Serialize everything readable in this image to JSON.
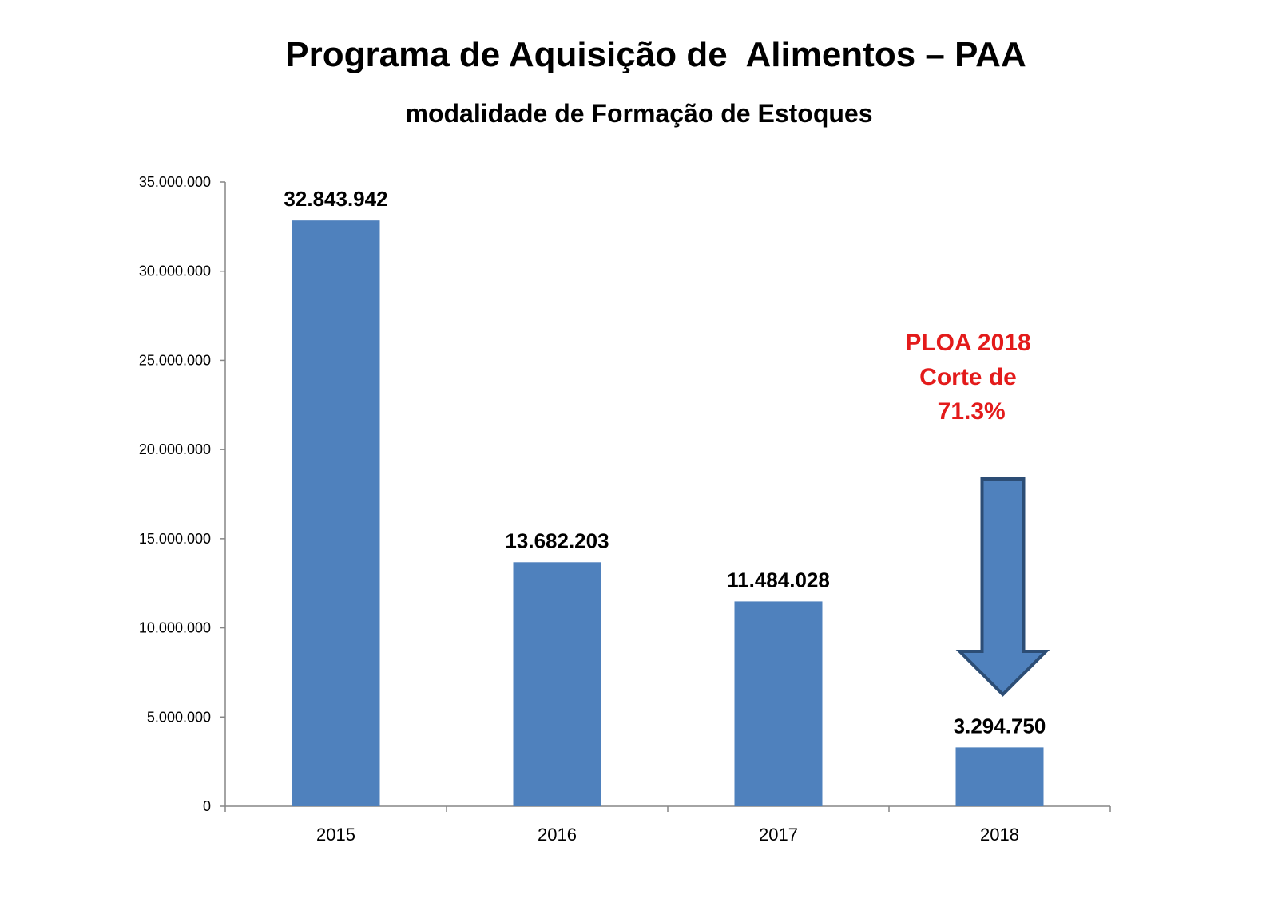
{
  "chart_data": {
    "type": "bar",
    "title": "Programa de Aquisição de  Alimentos – PAA",
    "subtitle": "modalidade de Formação de Estoques",
    "xlabel": "",
    "ylabel": "",
    "categories": [
      "2015",
      "2016",
      "2017",
      "2018"
    ],
    "values": [
      32843942,
      13682203,
      11484028,
      3294750
    ],
    "data_labels": [
      "32.843.942",
      "13.682.203",
      "11.484.028",
      "3.294.750"
    ],
    "ylim": [
      0,
      35000000
    ],
    "y_ticks": [
      {
        "value": 0,
        "label": "0"
      },
      {
        "value": 5000000,
        "label": "5.000.000"
      },
      {
        "value": 10000000,
        "label": "10.000.000"
      },
      {
        "value": 15000000,
        "label": "15.000.000"
      },
      {
        "value": 20000000,
        "label": "20.000.000"
      },
      {
        "value": 25000000,
        "label": "25.000.000"
      },
      {
        "value": 30000000,
        "label": "30.000.000"
      },
      {
        "value": 35000000,
        "label": "35.000.000"
      }
    ],
    "grid": false,
    "legend": "none",
    "bar_color": "#4f81bd",
    "annotation": {
      "lines": [
        "PLOA 2018",
        "Corte de",
        " 71.3%"
      ],
      "color": "#e31b1b",
      "arrow": "down-arrow-icon",
      "arrow_color": "#4f81bd",
      "target_category": "2018"
    }
  }
}
